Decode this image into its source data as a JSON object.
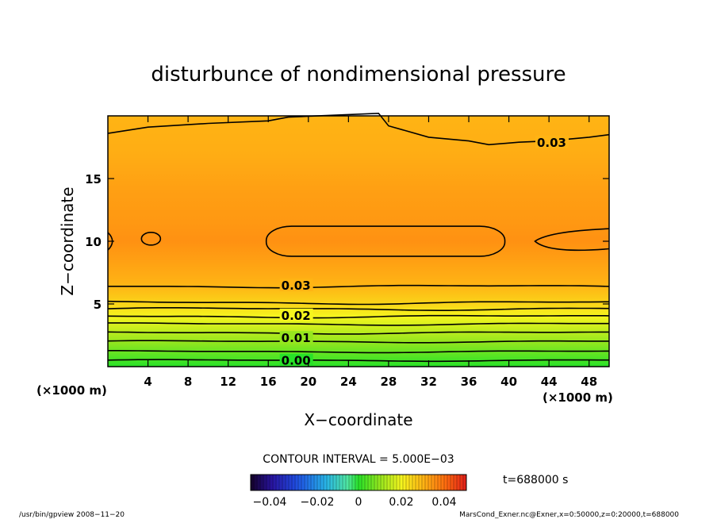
{
  "chart_data": {
    "type": "heatmap",
    "title": "disturbunce of nondimensional pressure",
    "xlabel": "X−coordinate",
    "ylabel": "Z−coordinate",
    "x_unit_left": "(×1000 m)",
    "x_unit_right": "(×1000 m)",
    "xlim": [
      0,
      50
    ],
    "ylim": [
      0,
      20
    ],
    "x_ticks": [
      4,
      8,
      12,
      16,
      20,
      24,
      28,
      32,
      36,
      40,
      44,
      48
    ],
    "y_ticks": [
      5,
      10,
      15
    ],
    "contour_interval_text": "CONTOUR INTERVAL = 5.000E−03",
    "time_text": "t=688000 s",
    "colorbar_ticks": [
      "−0.04",
      "−0.02",
      "0",
      "0.02",
      "0.04"
    ],
    "colorbar_range": [
      -0.05,
      0.05
    ],
    "contour_labels": [
      {
        "text": "0.00",
        "x": 17.3,
        "z": 0.4
      },
      {
        "text": "0.01",
        "x": 17.3,
        "z": 2.2
      },
      {
        "text": "0.02",
        "x": 17.3,
        "z": 4.0
      },
      {
        "text": "0.03",
        "x": 17.3,
        "z": 6.4
      },
      {
        "text": "0.03",
        "x": 42.8,
        "z": 17.8
      }
    ],
    "field_profile": [
      {
        "z": 0.0,
        "value": 0.0
      },
      {
        "z": 1.0,
        "value": 0.005
      },
      {
        "z": 2.0,
        "value": 0.01
      },
      {
        "z": 3.0,
        "value": 0.015
      },
      {
        "z": 4.0,
        "value": 0.02
      },
      {
        "z": 5.0,
        "value": 0.025
      },
      {
        "z": 6.5,
        "value": 0.03
      },
      {
        "z": 8.5,
        "value": 0.033
      },
      {
        "z": 10.0,
        "value": 0.035
      },
      {
        "z": 11.5,
        "value": 0.034
      },
      {
        "z": 14.0,
        "value": 0.033
      },
      {
        "z": 17.0,
        "value": 0.031
      },
      {
        "z": 20.0,
        "value": 0.03
      }
    ]
  },
  "footer": {
    "left": "/usr/bin/gpview   2008−11−20",
    "right": "MarsCond_Exner.nc@Exner,x=0:50000,z=0:20000,t=688000"
  }
}
